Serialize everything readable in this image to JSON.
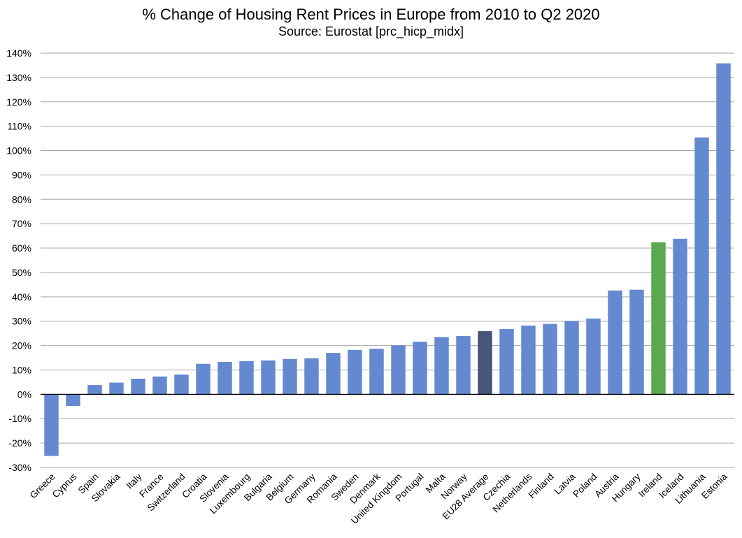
{
  "chart_data": {
    "type": "bar",
    "title": "% Change of Housing Rent Prices in Europe from 2010 to Q2 2020",
    "subtitle": "Source: Eurostat [prc_hicp_midx]",
    "xlabel": "",
    "ylabel": "",
    "ylim": [
      -30,
      140
    ],
    "ytick_step": 10,
    "ytick_format": "percent",
    "grid": true,
    "legend": "none",
    "categories": [
      "Greece",
      "Cyprus",
      "Spain",
      "Slovakia",
      "Italy",
      "France",
      "Switzerland",
      "Croatia",
      "Slovenia",
      "Luxembourg",
      "Bulgaria",
      "Belgium",
      "Germany",
      "Romania",
      "Sweden",
      "Denmark",
      "United Kingdom",
      "Portugal",
      "Malta",
      "Norway",
      "EU28 Average",
      "Czechia",
      "Netherlands",
      "Finland",
      "Latvia",
      "Poland",
      "Austria",
      "Hungary",
      "Ireland",
      "Iceland",
      "Lithuania",
      "Estonia"
    ],
    "values": [
      -25.3,
      -4.8,
      3.8,
      4.8,
      6.4,
      7.3,
      8.1,
      12.5,
      13.3,
      13.6,
      13.9,
      14.5,
      14.8,
      17.0,
      18.2,
      18.7,
      20.1,
      21.6,
      23.5,
      23.9,
      25.9,
      26.8,
      28.2,
      28.9,
      30.1,
      31.1,
      42.6,
      42.9,
      62.4,
      63.8,
      105.4,
      135.8
    ],
    "colors": {
      "default": "#6589d0",
      "highlight_eu": "#44577a",
      "highlight_ireland": "#5aa951",
      "grid": "#a6a6a6",
      "zero_line": "#000000"
    },
    "highlight": {
      "EU28 Average": "highlight_eu",
      "Ireland": "highlight_ireland"
    }
  }
}
